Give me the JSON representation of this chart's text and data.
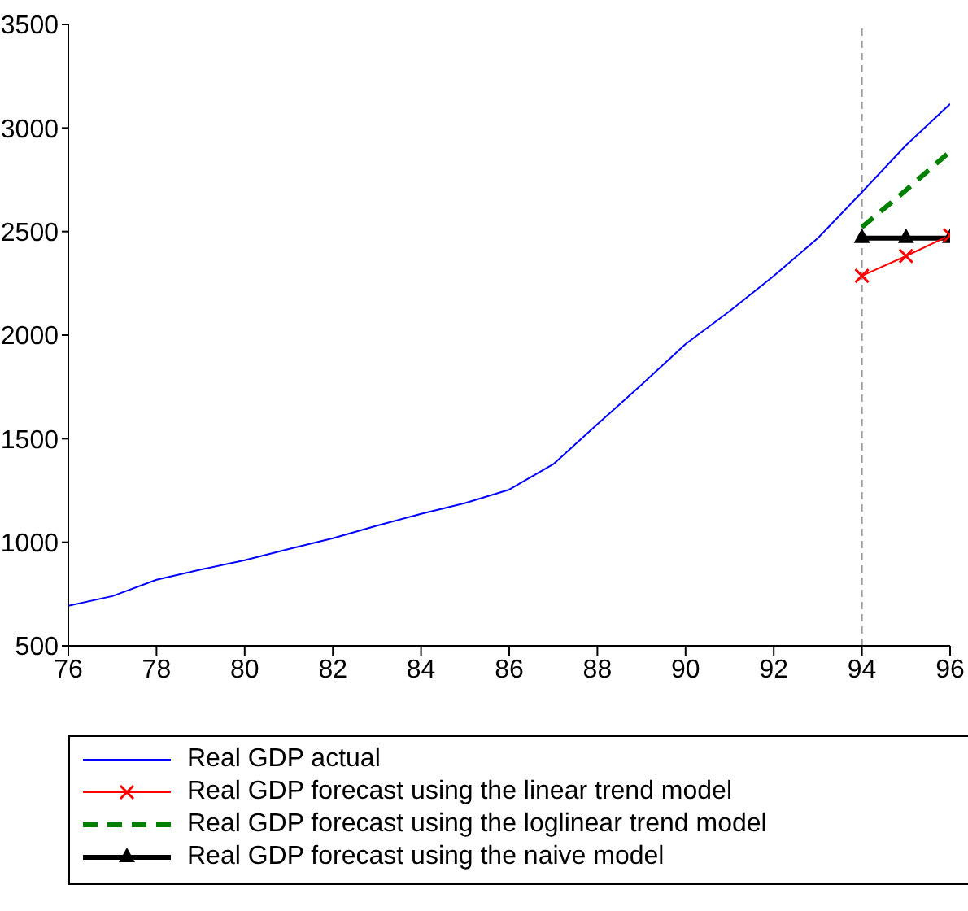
{
  "chart_data": {
    "type": "line",
    "x": [
      76,
      77,
      78,
      79,
      80,
      81,
      82,
      83,
      84,
      85,
      86,
      87,
      88,
      89,
      90,
      91,
      92,
      93,
      94,
      95,
      96
    ],
    "series": [
      {
        "name": "Real GDP actual",
        "color": "#0000ff",
        "marker": "none",
        "line_style": "solid",
        "values": [
          693,
          740,
          819,
          868,
          913,
          967,
          1019,
          1080,
          1137,
          1189,
          1254,
          1377,
          1570,
          1760,
          1957,
          2116,
          2286,
          2468,
          2690,
          2917,
          3116
        ]
      },
      {
        "name": "Real GDP forecast using the linear trend model",
        "color": "#ff0000",
        "marker": "cross",
        "line_style": "solid",
        "x": [
          94,
          95,
          96
        ],
        "values": [
          2286,
          2382,
          2482
        ]
      },
      {
        "name": "Real GDP forecast using the loglinear trend model",
        "color": "#008000",
        "marker": "none",
        "line_style": "dashed",
        "x": [
          94,
          95,
          96
        ],
        "values": [
          2521,
          2700,
          2887
        ]
      },
      {
        "name": "Real GDP forecast using the naive model",
        "color": "#000000",
        "marker": "triangle",
        "line_style": "solid",
        "x": [
          94,
          95,
          96
        ],
        "values": [
          2468,
          2468,
          2468
        ]
      }
    ],
    "xlim": [
      76,
      96
    ],
    "xticks": [
      76,
      78,
      80,
      82,
      84,
      86,
      88,
      90,
      92,
      94,
      96
    ],
    "ylim": [
      500,
      3500
    ],
    "yticks": [
      500,
      1000,
      1500,
      2000,
      2500,
      3000,
      3500
    ],
    "ref_lines": [
      {
        "axis": "x",
        "value": 94,
        "color": "#999999",
        "line_style": "dashed"
      }
    ],
    "grid": false,
    "legend": "bottom"
  }
}
